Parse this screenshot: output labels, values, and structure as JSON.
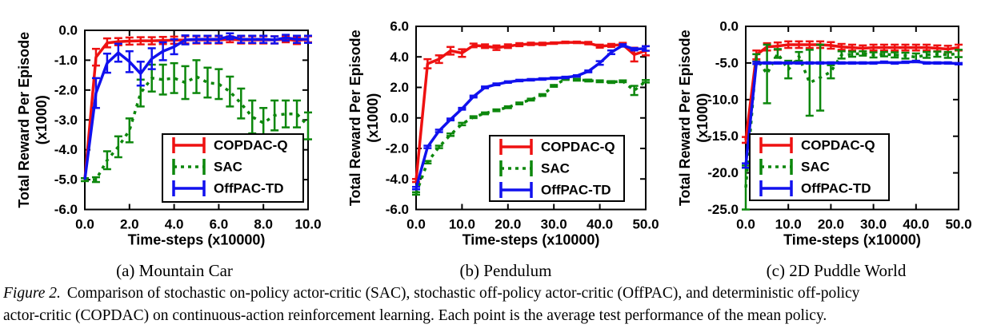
{
  "figure": {
    "subcaptions": [
      "(a) Mountain Car",
      "(b) Pendulum",
      "(c) 2D Puddle World"
    ],
    "caption_prefix": "Figure 2.",
    "caption_line1_rest": "Comparison of stochastic on-policy actor-critic (SAC), stochastic off-policy actor-critic (OffPAC), and deterministic off-policy",
    "caption_line2": "actor-critic (COPDAC) on continuous-action reinforcement learning. Each point is the average test performance of the mean policy."
  },
  "colors": {
    "copdac_q": "#ee1111",
    "sac": "#0c870c",
    "offpac_td": "#1111ee",
    "axis": "#000000",
    "legend_background": "#ffffff"
  },
  "chart_data": [
    {
      "type": "line",
      "title": "Mountain Car",
      "xlabel": "Time-steps (x10000)",
      "ylabel": "Total Reward Per Episode",
      "ylabel2": "(x1000)",
      "xlim": [
        0,
        10
      ],
      "ylim": [
        -6,
        0
      ],
      "xticks": [
        0,
        2,
        4,
        6,
        8,
        10
      ],
      "yticks": [
        0,
        -1,
        -2,
        -3,
        -4,
        -5,
        -6
      ],
      "grid": false,
      "legend_position": "bottom-right",
      "legend_entries": [
        "COPDAC-Q",
        "SAC",
        "OffPAC-TD"
      ],
      "series": [
        {
          "name": "COPDAC-Q",
          "color": "#ee1111",
          "dash": "solid",
          "x": [
            0,
            0.5,
            1,
            1.5,
            2,
            2.5,
            3,
            3.5,
            4,
            4.5,
            5,
            5.5,
            6,
            6.5,
            7,
            7.5,
            8,
            8.5,
            9,
            9.5,
            10
          ],
          "y": [
            -5.0,
            -0.9,
            -0.42,
            -0.38,
            -0.36,
            -0.35,
            -0.35,
            -0.34,
            -0.33,
            -0.32,
            -0.32,
            -0.32,
            -0.32,
            -0.3,
            -0.32,
            -0.32,
            -0.32,
            -0.32,
            -0.3,
            -0.34,
            -0.3
          ],
          "err": [
            0,
            0.28,
            0.15,
            0.12,
            0.12,
            0.12,
            0.12,
            0.12,
            0.12,
            0.12,
            0.12,
            0.12,
            0.12,
            0.1,
            0.12,
            0.12,
            0.12,
            0.12,
            0.1,
            0.12,
            0.1
          ]
        },
        {
          "name": "SAC",
          "color": "#0c870c",
          "dash": "dashed",
          "x": [
            0,
            0.5,
            1,
            1.5,
            2,
            2.5,
            3,
            3.5,
            4,
            4.5,
            5,
            5.5,
            6,
            6.5,
            7,
            7.5,
            8,
            8.5,
            9,
            9.5,
            10
          ],
          "y": [
            -5.0,
            -5.0,
            -4.35,
            -3.9,
            -3.35,
            -2.1,
            -1.6,
            -1.65,
            -1.6,
            -1.75,
            -1.55,
            -1.75,
            -1.8,
            -2.05,
            -2.45,
            -2.9,
            -3.1,
            -2.85,
            -2.8,
            -2.8,
            -3.2
          ],
          "err": [
            0.05,
            0.08,
            0.3,
            0.35,
            0.4,
            0.45,
            0.45,
            0.5,
            0.5,
            0.55,
            0.55,
            0.5,
            0.5,
            0.5,
            0.5,
            0.55,
            0.5,
            0.5,
            0.45,
            0.45,
            0.45
          ]
        },
        {
          "name": "OffPAC-TD",
          "color": "#1111ee",
          "dash": "solid",
          "x": [
            0,
            0.5,
            1,
            1.5,
            2,
            2.5,
            3,
            3.5,
            4,
            4.5,
            5,
            5.5,
            6,
            6.5,
            7,
            7.5,
            8,
            8.5,
            9,
            9.5,
            10
          ],
          "y": [
            -5.0,
            -2.1,
            -1.1,
            -0.75,
            -1.05,
            -1.45,
            -0.95,
            -0.7,
            -0.55,
            -0.32,
            -0.3,
            -0.3,
            -0.3,
            -0.2,
            -0.3,
            -0.3,
            -0.3,
            -0.32,
            -0.25,
            -0.3,
            -0.3
          ],
          "err": [
            0,
            0.5,
            0.32,
            0.3,
            0.35,
            0.4,
            0.35,
            0.3,
            0.25,
            0.15,
            0.12,
            0.12,
            0.12,
            0.1,
            0.12,
            0.12,
            0.12,
            0.12,
            0.1,
            0.12,
            0.12
          ]
        }
      ]
    },
    {
      "type": "line",
      "title": "Pendulum",
      "xlabel": "Time-steps (x10000)",
      "ylabel": "Total Reward Per Episode",
      "ylabel2": "(x1000)",
      "xlim": [
        0,
        50
      ],
      "ylim": [
        -6,
        6
      ],
      "xticks": [
        0,
        10,
        20,
        30,
        40,
        50
      ],
      "yticks": [
        6,
        4,
        2,
        0,
        -2,
        -4,
        -6
      ],
      "grid": false,
      "legend_position": "bottom-right",
      "legend_entries": [
        "COPDAC-Q",
        "SAC",
        "OffPAC-TD"
      ],
      "series": [
        {
          "name": "COPDAC-Q",
          "color": "#ee1111",
          "dash": "solid",
          "x": [
            0,
            2.5,
            5,
            7.5,
            10,
            12.5,
            15,
            17.5,
            20,
            22.5,
            25,
            27.5,
            30,
            32.5,
            35,
            37.5,
            40,
            42.5,
            45,
            47.5,
            50
          ],
          "y": [
            -4.1,
            3.55,
            3.85,
            4.4,
            4.25,
            4.75,
            4.7,
            4.6,
            4.7,
            4.8,
            4.85,
            4.85,
            4.9,
            4.95,
            4.95,
            4.9,
            4.7,
            4.75,
            4.8,
            4.15,
            4.4
          ],
          "err": [
            0.1,
            0.3,
            0.25,
            0.25,
            0.25,
            0.12,
            0.12,
            0.15,
            0.12,
            0.1,
            0.08,
            0.08,
            0.05,
            0.05,
            0.05,
            0.08,
            0.1,
            0.1,
            0.12,
            0.45,
            0.3
          ]
        },
        {
          "name": "SAC",
          "color": "#0c870c",
          "dash": "dashed",
          "x": [
            0,
            2.5,
            5,
            7.5,
            10,
            12.5,
            15,
            17.5,
            20,
            22.5,
            25,
            27.5,
            30,
            32.5,
            35,
            37.5,
            40,
            42.5,
            45,
            47.5,
            50
          ],
          "y": [
            -4.95,
            -2.9,
            -1.9,
            -1.1,
            -0.4,
            0.05,
            0.3,
            0.5,
            0.7,
            0.95,
            1.2,
            1.5,
            2.1,
            2.55,
            2.5,
            2.45,
            2.4,
            2.35,
            2.4,
            1.8,
            2.4
          ],
          "err": [
            0.08,
            0.08,
            0.08,
            0.08,
            0.08,
            0.06,
            0.06,
            0.06,
            0.06,
            0.06,
            0.06,
            0.06,
            0.06,
            0.06,
            0.06,
            0.06,
            0.06,
            0.06,
            0.06,
            0.3,
            0.08
          ]
        },
        {
          "name": "OffPAC-TD",
          "color": "#1111ee",
          "dash": "solid",
          "x": [
            0,
            2.5,
            5,
            7.5,
            10,
            12.5,
            15,
            17.5,
            20,
            22.5,
            25,
            27.5,
            30,
            32.5,
            35,
            37.5,
            40,
            42.5,
            45,
            47.5,
            50
          ],
          "y": [
            -4.6,
            -1.9,
            -0.85,
            -0.1,
            0.6,
            1.4,
            2.0,
            2.2,
            2.35,
            2.45,
            2.5,
            2.55,
            2.6,
            2.65,
            2.75,
            3.05,
            3.6,
            4.3,
            4.75,
            4.5,
            4.55
          ],
          "err": [
            0.08,
            0.08,
            0.08,
            0.06,
            0.06,
            0.06,
            0.06,
            0.06,
            0.05,
            0.05,
            0.05,
            0.05,
            0.05,
            0.05,
            0.05,
            0.06,
            0.12,
            0.12,
            0.08,
            0.08,
            0.15
          ]
        }
      ]
    },
    {
      "type": "line",
      "title": "2D Puddle World",
      "xlabel": "Time-steps (x10000)",
      "ylabel": "Total Reward Per Episode",
      "ylabel2": "(x1000)",
      "xlim": [
        0,
        50
      ],
      "ylim": [
        -25,
        0
      ],
      "xticks": [
        0,
        10,
        20,
        30,
        40,
        50
      ],
      "yticks": [
        0,
        -5,
        -10,
        -15,
        -20,
        -25
      ],
      "grid": false,
      "legend_position": "bottom-left",
      "legend_entries": [
        "COPDAC-Q",
        "SAC",
        "OffPAC-TD"
      ],
      "series": [
        {
          "name": "COPDAC-Q",
          "color": "#ee1111",
          "dash": "solid",
          "x": [
            0,
            2.5,
            5,
            7.5,
            10,
            12.5,
            15,
            17.5,
            20,
            22.5,
            25,
            27.5,
            30,
            32.5,
            35,
            37.5,
            40,
            42.5,
            45,
            47.5,
            50
          ],
          "y": [
            -15.5,
            -3.9,
            -2.8,
            -2.7,
            -2.5,
            -2.5,
            -2.5,
            -2.5,
            -2.6,
            -2.8,
            -2.9,
            -3.0,
            -2.9,
            -2.9,
            -2.9,
            -2.9,
            -2.9,
            -2.9,
            -3.0,
            -3.1,
            -2.9
          ],
          "err": [
            0.4,
            0.6,
            0.5,
            0.5,
            0.45,
            0.45,
            0.45,
            0.45,
            0.45,
            0.4,
            0.4,
            0.4,
            0.4,
            0.4,
            0.4,
            0.4,
            0.4,
            0.4,
            0.4,
            0.45,
            0.4
          ]
        },
        {
          "name": "SAC",
          "color": "#0c870c",
          "dash": "dashed",
          "x": [
            0,
            2.5,
            5,
            7.5,
            10,
            12.5,
            15,
            17.5,
            20,
            22.5,
            25,
            27.5,
            30,
            32.5,
            35,
            37.5,
            40,
            42.5,
            45,
            47.5,
            50
          ],
          "y": [
            -22.0,
            -4.3,
            -6.5,
            -3.7,
            -5.9,
            -4.1,
            -7.7,
            -7.0,
            -6.2,
            -3.9,
            -3.8,
            -3.7,
            -3.9,
            -3.8,
            -3.9,
            -4.0,
            -4.2,
            -3.9,
            -3.8,
            -3.9,
            -3.7
          ],
          "err": [
            3.0,
            0.5,
            4.0,
            0.6,
            1.2,
            0.6,
            4.5,
            4.5,
            0.9,
            0.5,
            0.35,
            0.3,
            0.35,
            0.3,
            0.35,
            0.4,
            0.5,
            0.4,
            0.35,
            0.4,
            0.5
          ]
        },
        {
          "name": "OffPAC-TD",
          "color": "#1111ee",
          "dash": "solid",
          "x": [
            0,
            2.5,
            5,
            7.5,
            10,
            12.5,
            15,
            17.5,
            20,
            22.5,
            25,
            27.5,
            30,
            32.5,
            35,
            37.5,
            40,
            42.5,
            45,
            47.5,
            50
          ],
          "y": [
            -19.0,
            -5.0,
            -5.0,
            -5.0,
            -5.0,
            -5.0,
            -5.0,
            -5.0,
            -5.0,
            -5.0,
            -5.0,
            -5.0,
            -5.0,
            -4.9,
            -5.0,
            -4.9,
            -4.8,
            -5.0,
            -5.0,
            -5.0,
            -5.1
          ],
          "err": [
            0.3,
            0.15,
            0.1,
            0.1,
            0.1,
            0.1,
            0.1,
            0.1,
            0.1,
            0.1,
            0.1,
            0.1,
            0.1,
            0.1,
            0.1,
            0.1,
            0.1,
            0.1,
            0.1,
            0.1,
            0.1
          ]
        }
      ]
    }
  ]
}
